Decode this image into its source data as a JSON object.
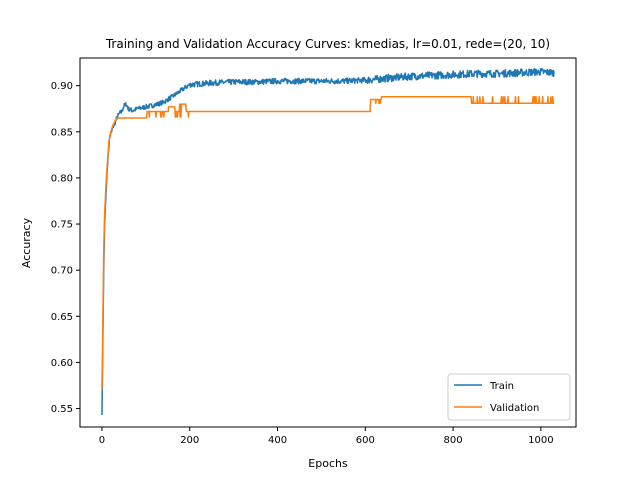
{
  "chart_data": {
    "type": "line",
    "title": "Training and Validation Accuracy Curves: kmedias, lr=0.01, rede=(20, 10)",
    "xlabel": "Epochs",
    "ylabel": "Accuracy",
    "xlim": [
      -50,
      1080
    ],
    "ylim": [
      0.53,
      0.93
    ],
    "xticks": [
      0,
      200,
      400,
      600,
      800,
      1000
    ],
    "yticks": [
      0.55,
      0.6,
      0.65,
      0.7,
      0.75,
      0.8,
      0.85,
      0.9
    ],
    "ytick_labels": [
      "0.55",
      "0.60",
      "0.65",
      "0.70",
      "0.75",
      "0.80",
      "0.85",
      "0.90"
    ],
    "grid": false,
    "legend_position": "lower-right",
    "epochs": 1030,
    "series": [
      {
        "name": "Train",
        "color": "#1f77b4",
        "points": [
          [
            0,
            0.543
          ],
          [
            2,
            0.62
          ],
          [
            4,
            0.7
          ],
          [
            6,
            0.75
          ],
          [
            8,
            0.77
          ],
          [
            10,
            0.79
          ],
          [
            12,
            0.81
          ],
          [
            15,
            0.83
          ],
          [
            18,
            0.845
          ],
          [
            22,
            0.85
          ],
          [
            26,
            0.856
          ],
          [
            30,
            0.86
          ],
          [
            35,
            0.866
          ],
          [
            40,
            0.87
          ],
          [
            45,
            0.872
          ],
          [
            50,
            0.878
          ],
          [
            55,
            0.88
          ],
          [
            60,
            0.875
          ],
          [
            70,
            0.873
          ],
          [
            80,
            0.875
          ],
          [
            90,
            0.876
          ],
          [
            100,
            0.877
          ],
          [
            120,
            0.879
          ],
          [
            140,
            0.882
          ],
          [
            160,
            0.888
          ],
          [
            175,
            0.893
          ],
          [
            190,
            0.898
          ],
          [
            200,
            0.901
          ],
          [
            250,
            0.903
          ],
          [
            300,
            0.904
          ],
          [
            350,
            0.904
          ],
          [
            400,
            0.905
          ],
          [
            450,
            0.905
          ],
          [
            500,
            0.905
          ],
          [
            550,
            0.905
          ],
          [
            600,
            0.906
          ],
          [
            650,
            0.908
          ],
          [
            700,
            0.91
          ],
          [
            750,
            0.911
          ],
          [
            800,
            0.912
          ],
          [
            850,
            0.913
          ],
          [
            900,
            0.913
          ],
          [
            950,
            0.914
          ],
          [
            1000,
            0.915
          ],
          [
            1030,
            0.914
          ]
        ]
      },
      {
        "name": "Validation",
        "color": "#ff7f0e",
        "points": [
          [
            0,
            0.57
          ],
          [
            2,
            0.64
          ],
          [
            4,
            0.72
          ],
          [
            6,
            0.76
          ],
          [
            8,
            0.78
          ],
          [
            10,
            0.8
          ],
          [
            13,
            0.82
          ],
          [
            16,
            0.84
          ],
          [
            20,
            0.85
          ],
          [
            25,
            0.857
          ],
          [
            30,
            0.862
          ],
          [
            35,
            0.865
          ],
          [
            100,
            0.865
          ],
          [
            102,
            0.872
          ],
          [
            150,
            0.872
          ],
          [
            152,
            0.877
          ],
          [
            165,
            0.877
          ],
          [
            167,
            0.872
          ],
          [
            175,
            0.872
          ],
          [
            177,
            0.88
          ],
          [
            190,
            0.88
          ],
          [
            192,
            0.872
          ],
          [
            610,
            0.872
          ],
          [
            612,
            0.885
          ],
          [
            635,
            0.885
          ],
          [
            637,
            0.888
          ],
          [
            840,
            0.888
          ],
          [
            842,
            0.881
          ],
          [
            1030,
            0.881
          ]
        ]
      }
    ]
  }
}
